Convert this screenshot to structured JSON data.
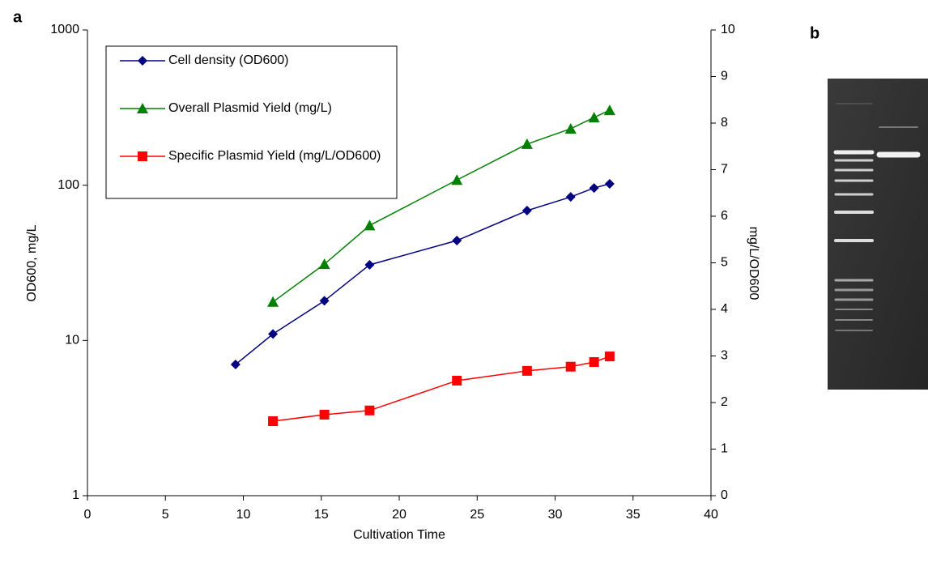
{
  "chart_data": {
    "type": "line",
    "panel_labels": [
      "a",
      "b"
    ],
    "xlabel": "Cultivation Time",
    "ylabel": "OD600, mg/L",
    "y2label": "mg/L/OD600",
    "xlim": [
      0,
      40
    ],
    "xticks": [
      0,
      5,
      10,
      15,
      20,
      25,
      30,
      35,
      40
    ],
    "ylim": [
      1,
      1000
    ],
    "yticks": [
      1,
      10,
      100,
      1000
    ],
    "ylog": true,
    "y2lim": [
      0,
      10
    ],
    "y2ticks": [
      0,
      1,
      2,
      3,
      4,
      5,
      6,
      7,
      8,
      9,
      10
    ],
    "grid": false,
    "legend": "upper left",
    "series": [
      {
        "name": "Cell density (OD600)",
        "color": "#000080",
        "marker": "diamond",
        "x": [
          9.5,
          11.9,
          15.2,
          18.1,
          23.7,
          28.2,
          31,
          32.5,
          33.5
        ],
        "values": [
          7,
          11,
          18,
          30.7,
          44,
          68.6,
          84,
          96,
          102
        ]
      },
      {
        "name": "Overall Plasmid Yield (mg/L)",
        "color": "#008000",
        "marker": "triangle",
        "x": [
          11.9,
          15.2,
          18.1,
          23.7,
          28.2,
          31,
          32.5,
          33.5
        ],
        "values": [
          17.7,
          31,
          55,
          108,
          184,
          231,
          273,
          304
        ]
      },
      {
        "name": "Specific Plasmid Yield (mg/L/OD600)",
        "color": "#ff0000",
        "marker": "square",
        "axis": "y2",
        "x": [
          11.9,
          15.2,
          18.1,
          23.7,
          28.2,
          31,
          32.5,
          33.5
        ],
        "values": [
          1.6,
          1.74,
          1.83,
          2.47,
          2.68,
          2.77,
          2.87,
          2.99
        ]
      }
    ]
  }
}
